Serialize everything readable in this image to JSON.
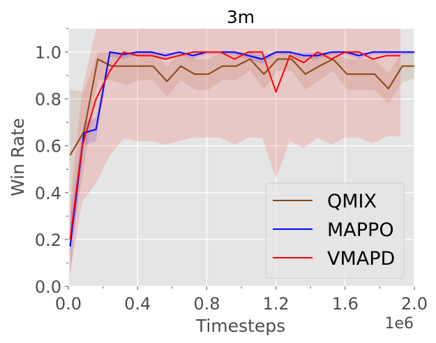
{
  "chart_data": {
    "type": "line",
    "title": "3m",
    "xlabel": "Timesteps",
    "ylabel": "Win Rate",
    "x_offset_label": "1e6",
    "xlim": [
      0.0,
      2.0
    ],
    "ylim": [
      0.0,
      1.1
    ],
    "xticks": [
      0.0,
      0.4,
      0.8,
      1.2,
      1.6,
      2.0
    ],
    "xtick_labels": [
      "0.0",
      "0.4",
      "0.8",
      "1.2",
      "1.6",
      "2.0"
    ],
    "xminor": [
      0.2,
      0.6,
      1.0,
      1.4,
      1.8
    ],
    "yticks": [
      0.0,
      0.2,
      0.4,
      0.6,
      0.8,
      1.0
    ],
    "ytick_labels": [
      "0.0",
      "0.2",
      "0.4",
      "0.6",
      "0.8",
      "1.0"
    ],
    "yminor": [
      0.1,
      0.3,
      0.5,
      0.7,
      0.9,
      1.1
    ],
    "grid": true,
    "legend_position": "lower-right",
    "series": [
      {
        "name": "QMIX",
        "color": "#8b4513",
        "x": [
          0.01,
          0.09,
          0.17,
          0.25,
          0.33,
          0.41,
          0.49,
          0.57,
          0.65,
          0.73,
          0.81,
          0.89,
          0.97,
          1.05,
          1.13,
          1.21,
          1.29,
          1.37,
          1.45,
          1.53,
          1.61,
          1.69,
          1.77,
          1.85,
          1.93,
          2.0
        ],
        "y": [
          0.56,
          0.66,
          0.97,
          0.94,
          0.94,
          0.94,
          0.94,
          0.875,
          0.94,
          0.906,
          0.906,
          0.94,
          0.94,
          0.97,
          0.906,
          0.97,
          0.97,
          0.906,
          0.94,
          0.97,
          0.906,
          0.906,
          0.906,
          0.844,
          0.94,
          0.94
        ],
        "band_low": [
          0.18,
          0.5,
          0.88,
          0.88,
          0.86,
          0.88,
          0.88,
          0.81,
          0.88,
          0.84,
          0.84,
          0.88,
          0.88,
          0.92,
          0.84,
          0.92,
          0.92,
          0.84,
          0.88,
          0.92,
          0.84,
          0.84,
          0.84,
          0.78,
          0.87,
          0.89
        ],
        "band_high": [
          0.84,
          0.83,
          1.0,
          1.0,
          1.0,
          1.0,
          1.0,
          0.94,
          1.0,
          0.97,
          0.97,
          1.0,
          1.0,
          1.0,
          0.97,
          1.0,
          1.0,
          0.97,
          1.0,
          1.0,
          0.97,
          0.97,
          0.97,
          0.91,
          1.0,
          1.0
        ]
      },
      {
        "name": "MAPPO",
        "color": "#0000ff",
        "x": [
          0.01,
          0.09,
          0.16,
          0.24,
          0.32,
          0.4,
          0.48,
          0.56,
          0.64,
          0.72,
          0.8,
          0.88,
          0.96,
          1.04,
          1.12,
          1.2,
          1.28,
          1.36,
          1.44,
          1.52,
          1.6,
          1.68,
          1.76,
          1.84,
          1.92,
          2.0
        ],
        "y": [
          0.17,
          0.655,
          0.67,
          1.0,
          0.99,
          1.0,
          1.0,
          0.985,
          1.0,
          0.985,
          1.0,
          1.0,
          1.0,
          0.985,
          0.97,
          1.0,
          1.0,
          0.985,
          0.985,
          1.0,
          1.0,
          0.985,
          1.0,
          1.0,
          1.0,
          1.0
        ],
        "band_low": [
          0.05,
          0.6,
          0.62,
          0.98,
          0.97,
          0.99,
          0.99,
          0.97,
          0.99,
          0.97,
          0.99,
          0.99,
          0.99,
          0.97,
          0.95,
          0.99,
          0.99,
          0.97,
          0.97,
          0.99,
          0.99,
          0.97,
          0.99,
          0.99,
          0.99,
          0.99
        ],
        "band_high": [
          0.3,
          0.7,
          0.72,
          1.0,
          1.0,
          1.0,
          1.0,
          1.0,
          1.0,
          1.0,
          1.0,
          1.0,
          1.0,
          1.0,
          0.99,
          1.0,
          1.0,
          1.0,
          1.0,
          1.0,
          1.0,
          1.0,
          1.0,
          1.0,
          1.0,
          1.0
        ]
      },
      {
        "name": "VMAPD",
        "color": "#ff0000",
        "x": [
          0.01,
          0.08,
          0.16,
          0.24,
          0.32,
          0.4,
          0.48,
          0.56,
          0.64,
          0.72,
          0.8,
          0.88,
          0.96,
          1.04,
          1.12,
          1.2,
          1.28,
          1.36,
          1.44,
          1.52,
          1.6,
          1.68,
          1.76,
          1.84,
          1.92
        ],
        "y": [
          0.2,
          0.6,
          0.8,
          0.92,
          1.0,
          0.985,
          0.985,
          0.97,
          0.985,
          1.0,
          1.0,
          1.0,
          0.97,
          1.0,
          1.0,
          0.83,
          0.985,
          0.955,
          1.0,
          0.97,
          1.0,
          1.0,
          0.97,
          0.985,
          0.985
        ],
        "band_low": [
          0.05,
          0.36,
          0.44,
          0.56,
          0.63,
          0.62,
          0.62,
          0.605,
          0.62,
          0.635,
          0.635,
          0.635,
          0.605,
          0.635,
          0.635,
          0.46,
          0.62,
          0.59,
          0.635,
          0.605,
          0.635,
          0.635,
          0.61,
          0.64,
          0.64
        ],
        "band_high": [
          0.35,
          0.84,
          1.1,
          1.1,
          1.1,
          1.1,
          1.1,
          1.1,
          1.1,
          1.1,
          1.1,
          1.1,
          1.1,
          1.1,
          1.1,
          1.1,
          1.1,
          1.1,
          1.1,
          1.1,
          1.1,
          1.1,
          1.1,
          1.1,
          1.1
        ]
      }
    ]
  }
}
